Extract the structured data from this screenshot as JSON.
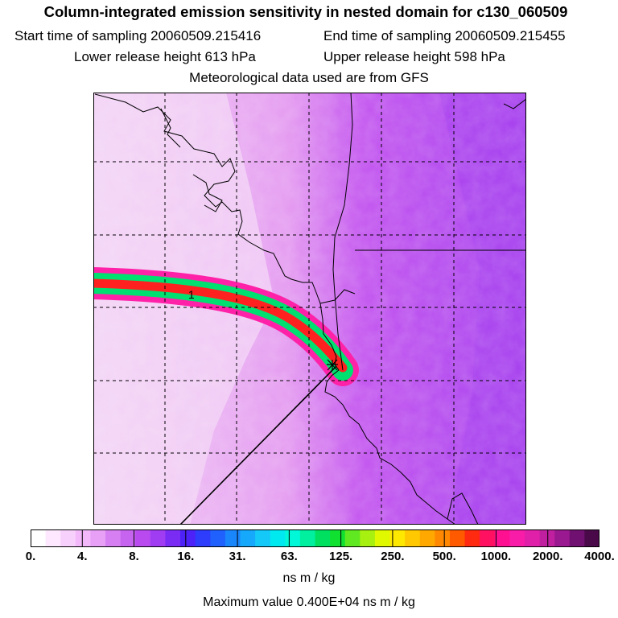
{
  "header": {
    "title": "Column-integrated emission sensitivity in nested domain for c130_060509",
    "start_label": "Start time of sampling 20060509.215416",
    "end_label": "End time of sampling 20060509.215455",
    "lower_label": "Lower release height  613 hPa",
    "upper_label": "Upper release height  598 hPa",
    "met_label": "Meteorological data used are from GFS"
  },
  "map": {
    "marker_label": "1",
    "colors": {
      "background_light": "#f3d4f6",
      "background_mid": "#e49af0",
      "background_deep": "#c355ef",
      "background_violet": "#a640ee",
      "plume_outer": "#ff22a8",
      "plume_mid": "#00e070",
      "plume_core": "#ff2020"
    }
  },
  "colorbar": {
    "tick_labels": [
      "0.",
      "4.",
      "8.",
      "16.",
      "31.",
      "63.",
      "125.",
      "250.",
      "500.",
      "1000.",
      "2000.",
      "4000."
    ],
    "colors": [
      "#ffffff",
      "#fde8ff",
      "#f8d0fc",
      "#f2b8fa",
      "#e8a0f6",
      "#d67ff2",
      "#c664f0",
      "#b84af0",
      "#a03cf2",
      "#7a2cf5",
      "#4c22f8",
      "#2e3cfb",
      "#2060fc",
      "#1a86fc",
      "#16a8fb",
      "#14c8f8",
      "#00e8f0",
      "#00f8d8",
      "#00f0a0",
      "#00e060",
      "#10e030",
      "#60e820",
      "#a8f010",
      "#e0f800",
      "#ffe800",
      "#ffc800",
      "#ffa800",
      "#ff8800",
      "#ff5a00",
      "#ff2a10",
      "#ff1060",
      "#ff1090",
      "#f81ca8",
      "#e020a8",
      "#c020a0",
      "#9a1890",
      "#701070",
      "#4a0a4a"
    ],
    "units_label": "ns m / kg",
    "max_label": "Maximum value  0.400E+04 ns m / kg"
  }
}
